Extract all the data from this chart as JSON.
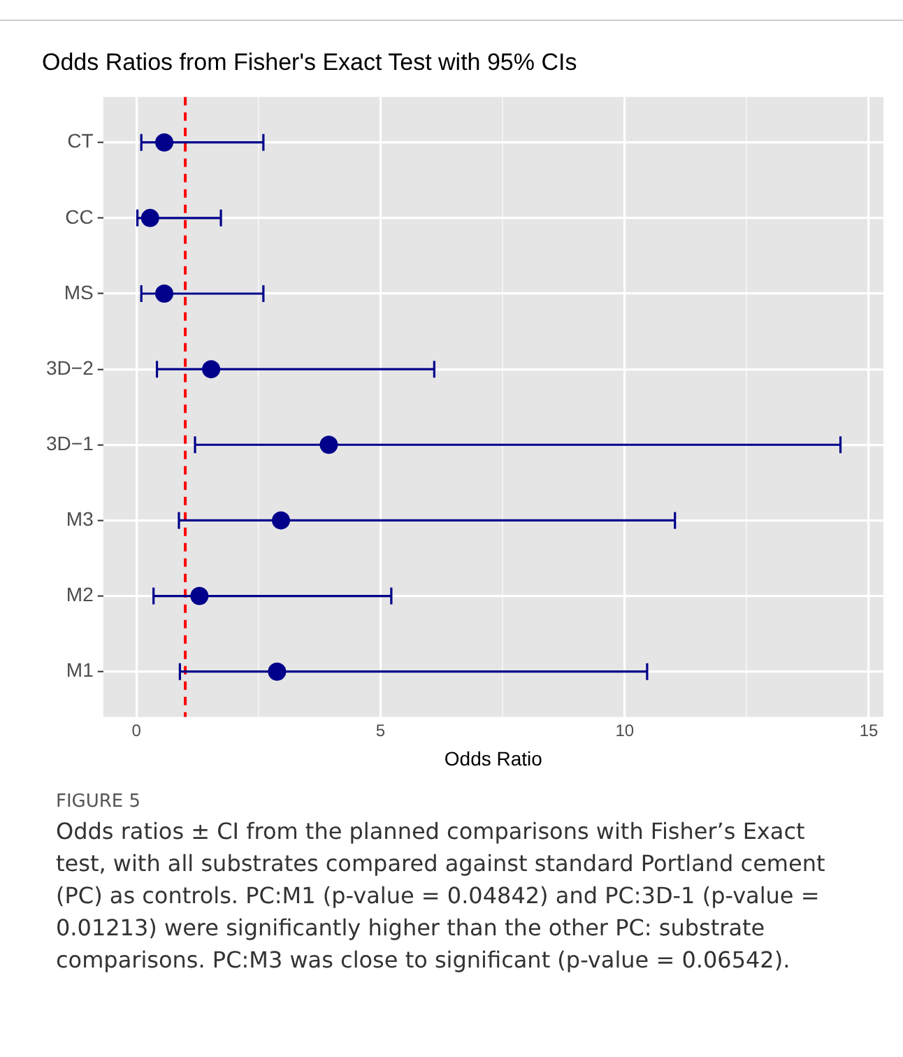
{
  "chart_data": {
    "type": "scatter",
    "orientation": "horizontal",
    "title": "Odds Ratios from Fisher's Exact Test with 95% CIs",
    "xlabel": "Odds Ratio",
    "categories": [
      "CT",
      "CC",
      "MS",
      "3D−2",
      "3D−1",
      "M3",
      "M2",
      "M1"
    ],
    "values": [
      0.57,
      0.28,
      0.57,
      1.53,
      3.94,
      2.96,
      1.29,
      2.88
    ],
    "errors": [
      [
        0.1,
        2.6
      ],
      [
        0.02,
        1.73
      ],
      [
        0.1,
        2.6
      ],
      [
        0.42,
        6.1
      ],
      [
        1.2,
        14.42
      ],
      [
        0.87,
        11.03
      ],
      [
        0.35,
        5.22
      ],
      [
        0.89,
        10.46
      ]
    ],
    "color": "#00008b",
    "marker": "circle",
    "xlim": [
      -0.68,
      15.3
    ],
    "xticks": [
      0,
      {
        "value": 2.5,
        "label": null
      },
      5,
      {
        "value": 7.5,
        "label": null
      },
      10,
      {
        "value": 12.5,
        "label": null
      },
      15
    ],
    "grid": true,
    "ref_lines": [
      {
        "axis": "x",
        "value": 1,
        "color": "#ff0000",
        "line_style": "dashed"
      }
    ],
    "annotations": [
      "FIGURE 5",
      "Odds ratios ± CI from the planned comparisons with Fisher’s Exact test, with all substrates compared against standard Portland cement (PC) as controls. PC:M1 (p-value = 0.04842) and PC:3D-1 (p-value = 0.01213) were significantly higher than the other PC: substrate comparisons. PC:M3 was close to significant (p-value = 0.06542)."
    ]
  }
}
